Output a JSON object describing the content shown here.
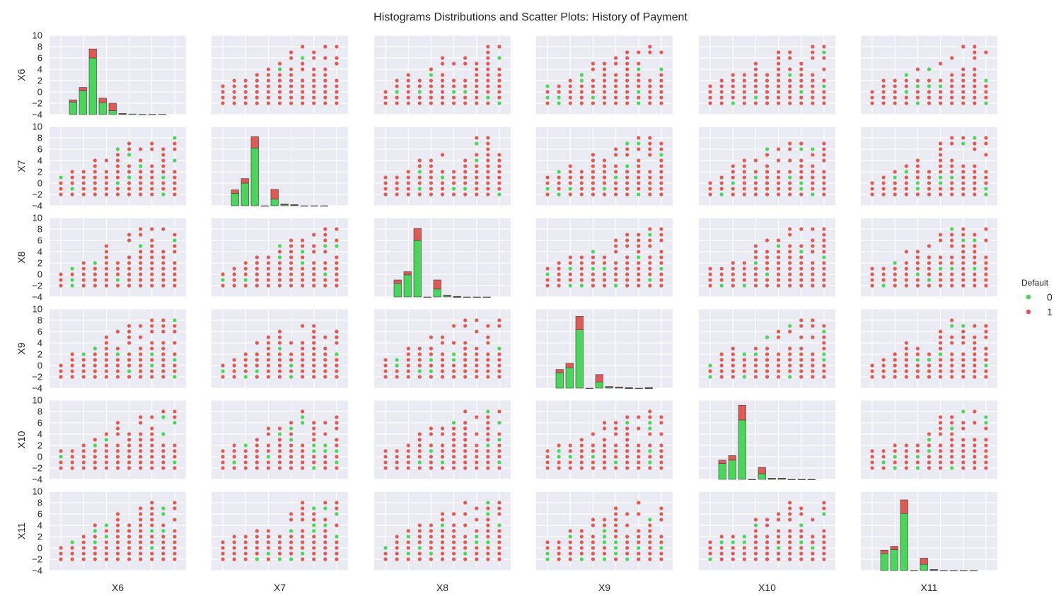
{
  "chart_data": {
    "type": "pairplot",
    "title": "Histograms Distributions and Scatter Plots: History of Payment",
    "variables": [
      "X6",
      "X7",
      "X8",
      "X9",
      "X10",
      "X11"
    ],
    "axis_range": [
      -4,
      10
    ],
    "y_ticks": [
      10,
      8,
      6,
      4,
      2,
      0,
      -2,
      -4
    ],
    "grid": true,
    "legend": {
      "title": "Default",
      "placement": "right",
      "entries": [
        {
          "label": "0",
          "color": "#4ad65a"
        },
        {
          "label": "1",
          "color": "#e05a55"
        }
      ]
    },
    "hue_colors": {
      "0": "#4ad65a",
      "1": "#e05a55"
    },
    "histogram": {
      "bins": [
        -2,
        -1,
        0,
        1,
        2,
        3,
        4,
        5,
        6,
        7
      ],
      "note": "stacked bars; values on the y-axis scale of each diagonal cell",
      "per_variable": {
        "X6": {
          "green": [
            -1.8,
            0.2,
            6.0,
            -1.9,
            -3.3,
            -3.9,
            -3.9,
            -4.0,
            -4.0,
            -4.0
          ],
          "red": [
            0.4,
            0.6,
            1.6,
            0.8,
            1.3,
            0.1,
            0.0,
            0.0,
            0.0,
            0.0
          ]
        },
        "X7": {
          "green": [
            -1.8,
            0.0,
            6.2,
            -4.0,
            -2.8,
            -3.8,
            -3.9,
            -4.0,
            -4.0,
            -4.0
          ],
          "red": [
            0.6,
            0.8,
            2.0,
            0.0,
            1.7,
            0.1,
            0.1,
            0.0,
            0.0,
            0.0
          ]
        },
        "X8": {
          "green": [
            -1.6,
            -0.1,
            6.0,
            -4.0,
            -2.6,
            -3.8,
            -4.0,
            -4.0,
            -4.0,
            -4.0
          ],
          "red": [
            0.6,
            0.6,
            2.1,
            0.0,
            1.6,
            0.1,
            0.1,
            0.0,
            0.0,
            0.0
          ]
        },
        "X9": {
          "green": [
            -1.3,
            -0.4,
            6.3,
            -4.0,
            -2.9,
            -3.8,
            -3.9,
            -4.0,
            -4.0,
            -4.0
          ],
          "red": [
            0.6,
            0.8,
            2.4,
            0.0,
            1.3,
            0.1,
            0.1,
            0.1,
            0.0,
            0.1
          ]
        },
        "X10": {
          "green": [
            -1.2,
            -0.6,
            6.5,
            -4.0,
            -3.0,
            -3.9,
            -3.9,
            -4.0,
            -4.0,
            -4.0
          ],
          "red": [
            0.6,
            0.8,
            2.6,
            0.0,
            1.1,
            0.1,
            0.1,
            0.0,
            0.0,
            0.0
          ]
        },
        "X11": {
          "green": [
            -1.0,
            -0.3,
            6.1,
            -4.0,
            -2.9,
            -3.9,
            -4.0,
            -4.0,
            -4.0,
            -4.0
          ],
          "red": [
            0.6,
            0.6,
            2.4,
            0.0,
            1.1,
            0.1,
            0.0,
            0.0,
            0.0,
            0.0
          ]
        }
      }
    },
    "scatter_value_range": [
      -2,
      8
    ],
    "point_radius_units": "approx"
  }
}
